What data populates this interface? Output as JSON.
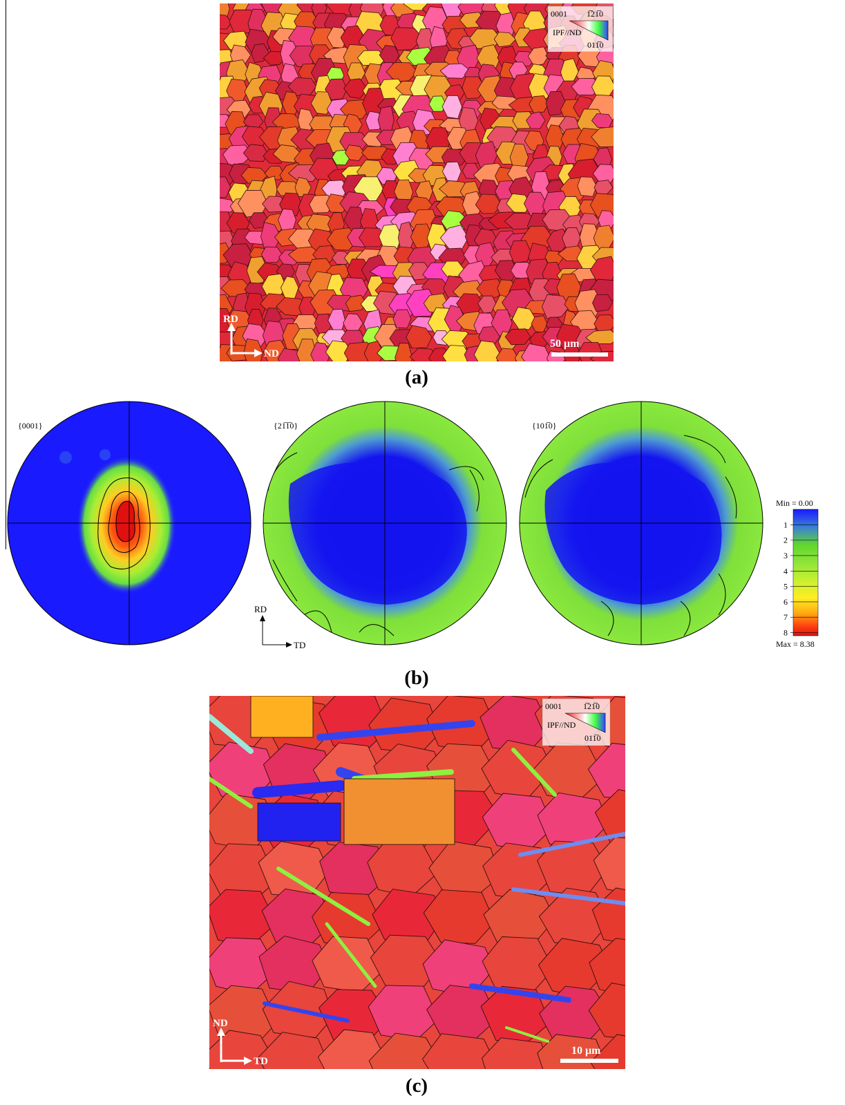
{
  "figure": {
    "panel_a": {
      "label": "(a)",
      "ipf_key": {
        "corner_basal": "0001",
        "corner_prism1": "1̅21̅0",
        "corner_prism2": "011̅0",
        "key_label": "IPF//ND"
      },
      "axes": {
        "vertical": "RD",
        "horizontal": "ND"
      },
      "scale_bar": "50 μm"
    },
    "panel_b": {
      "label": "(b)",
      "pole_figures": [
        {
          "title": "{0001}"
        },
        {
          "title": "{21̅1̅0}"
        },
        {
          "title": "{101̅0}"
        }
      ],
      "axes": {
        "vertical": "RD",
        "horizontal": "TD"
      },
      "colorbar": {
        "min_label": "Min = 0.00",
        "max_label": "Max = 8.38",
        "ticks": [
          "1",
          "2",
          "3",
          "4",
          "5",
          "6",
          "7",
          "8"
        ],
        "colors": [
          "#1a1aff",
          "#3a7fd6",
          "#5fd62e",
          "#8ee43a",
          "#c8f030",
          "#ffee22",
          "#ffaa11",
          "#ff4411",
          "#e01010"
        ]
      }
    },
    "panel_c": {
      "label": "(c)",
      "ipf_key": {
        "corner_basal": "0001",
        "corner_prism1": "1̅21̅0",
        "corner_prism2": "011̅0",
        "key_label": "IPF//ND"
      },
      "axes": {
        "vertical": "ND",
        "horizontal": "TD"
      },
      "scale_bar": "10 μm"
    }
  }
}
